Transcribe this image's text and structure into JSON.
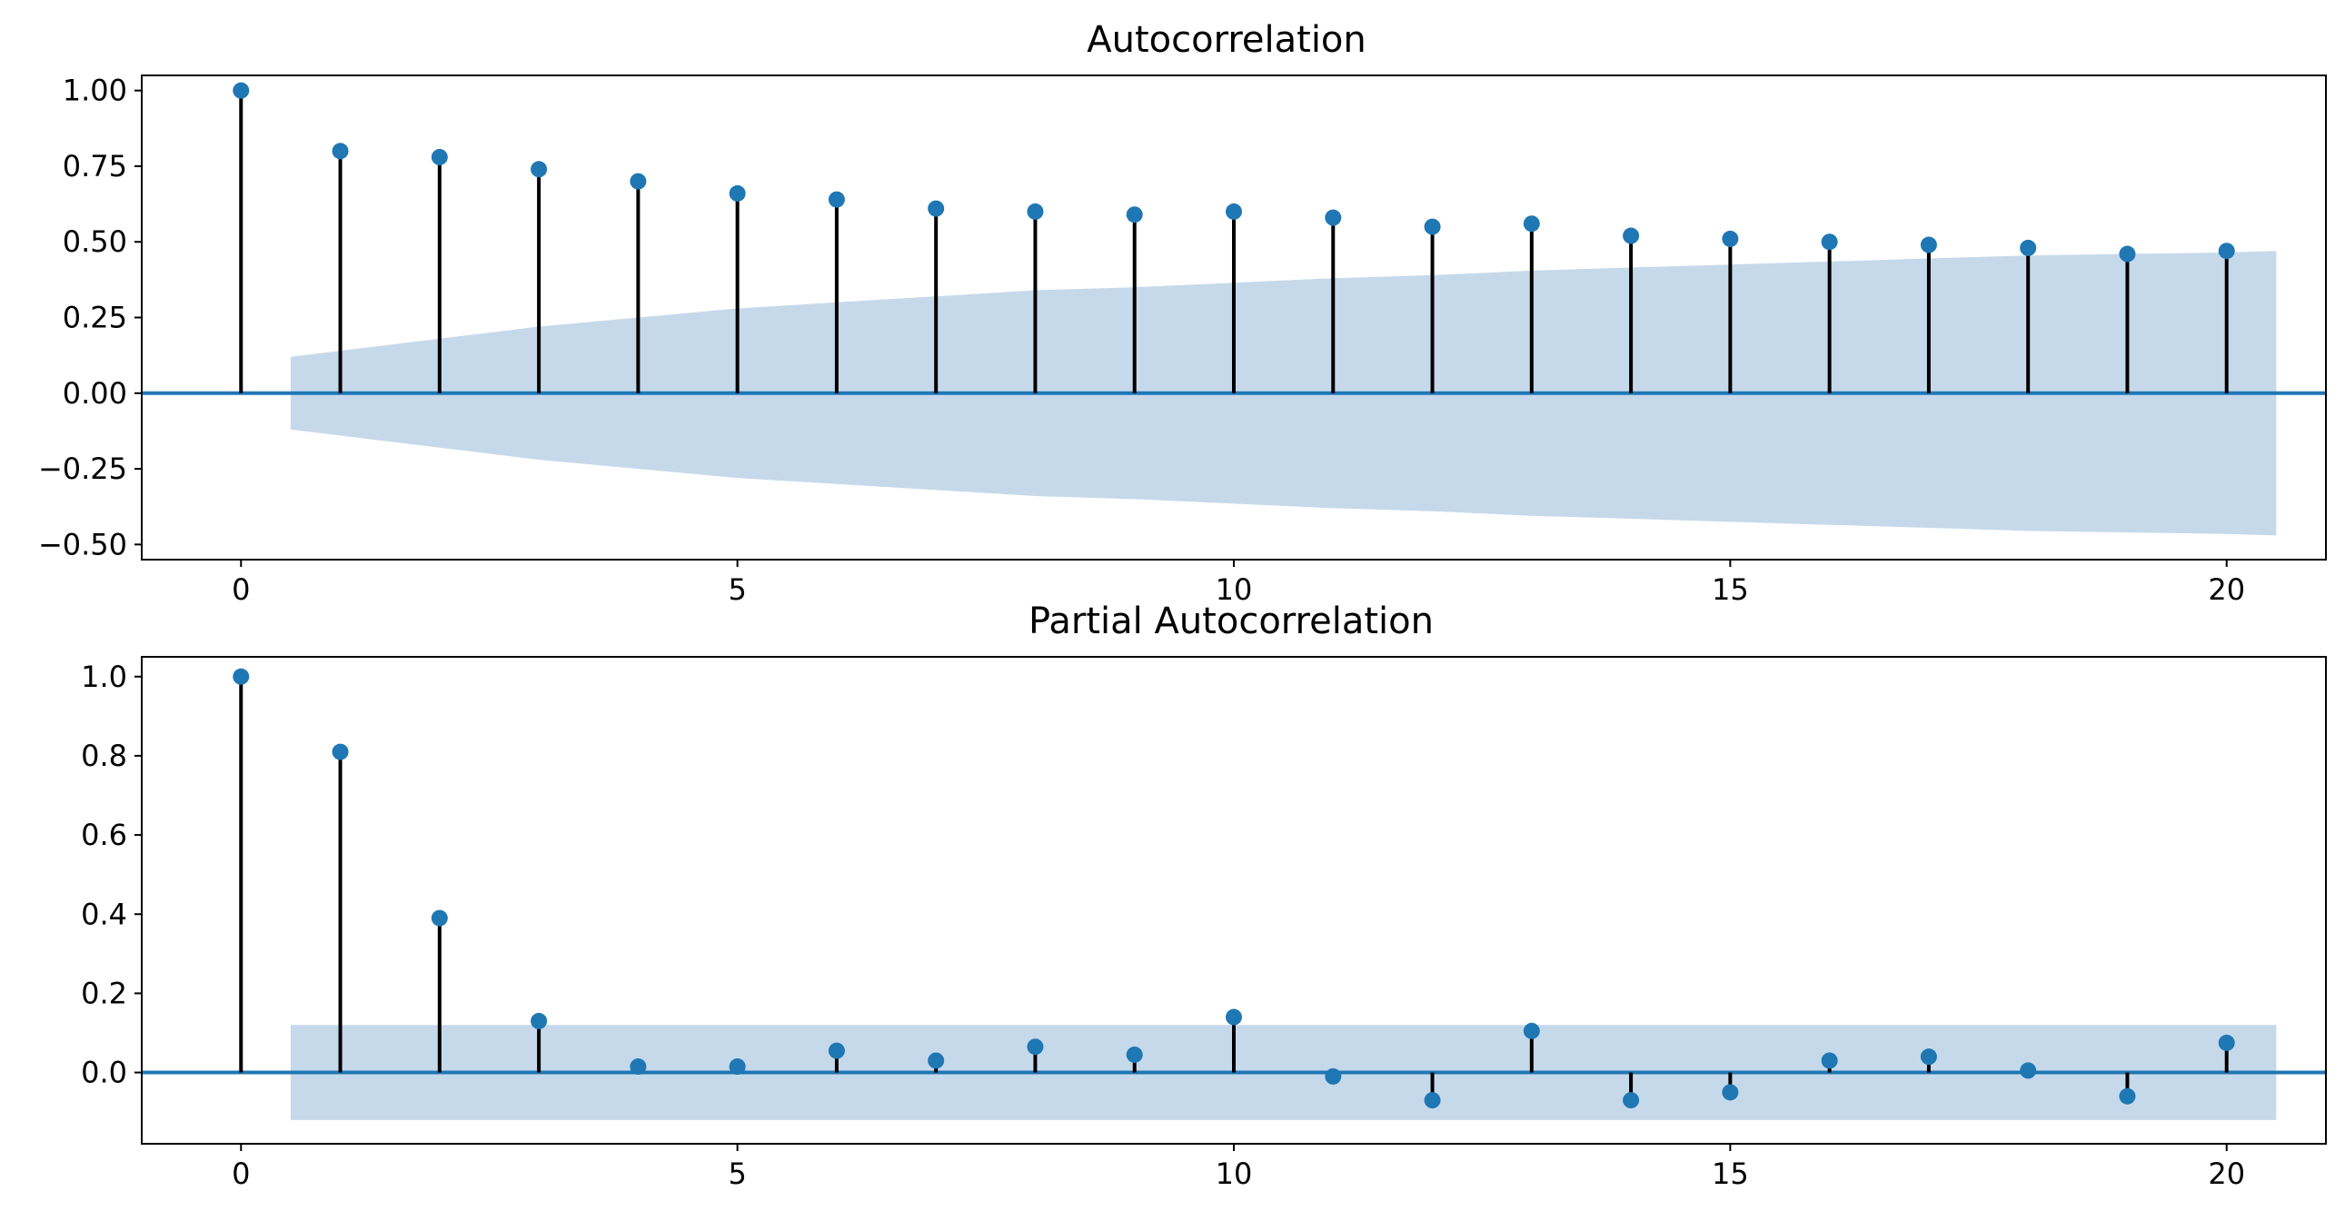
{
  "chart_data": [
    {
      "type": "stem",
      "title": "Autocorrelation",
      "xlabel": "",
      "ylabel": "",
      "xlim": [
        -1,
        21
      ],
      "ylim": [
        -0.55,
        1.05
      ],
      "x_ticks": [
        0,
        5,
        10,
        15,
        20
      ],
      "x_tick_labels": [
        "0",
        "5",
        "10",
        "15",
        "20"
      ],
      "y_ticks": [
        1.0,
        0.75,
        0.5,
        0.25,
        0.0,
        -0.25,
        -0.5
      ],
      "y_tick_labels": [
        "1.00",
        "0.75",
        "0.50",
        "0.25",
        "0.00",
        "−0.25",
        "−0.50"
      ],
      "lags": [
        0,
        1,
        2,
        3,
        4,
        5,
        6,
        7,
        8,
        9,
        10,
        11,
        12,
        13,
        14,
        15,
        16,
        17,
        18,
        19,
        20
      ],
      "values": [
        1.0,
        0.8,
        0.78,
        0.74,
        0.7,
        0.66,
        0.64,
        0.61,
        0.6,
        0.59,
        0.6,
        0.58,
        0.55,
        0.56,
        0.52,
        0.51,
        0.5,
        0.49,
        0.48,
        0.46,
        0.47
      ],
      "confidence_band": {
        "lags": [
          0.5,
          1,
          2,
          3,
          4,
          5,
          6,
          7,
          8,
          9,
          10,
          11,
          12,
          13,
          14,
          15,
          16,
          17,
          18,
          19,
          20,
          20.5
        ],
        "upper": [
          0.12,
          0.14,
          0.18,
          0.22,
          0.25,
          0.28,
          0.3,
          0.32,
          0.34,
          0.35,
          0.365,
          0.38,
          0.39,
          0.405,
          0.415,
          0.425,
          0.435,
          0.445,
          0.455,
          0.46,
          0.465,
          0.47
        ],
        "lower": [
          -0.12,
          -0.14,
          -0.18,
          -0.22,
          -0.25,
          -0.28,
          -0.3,
          -0.32,
          -0.34,
          -0.35,
          -0.365,
          -0.38,
          -0.39,
          -0.405,
          -0.415,
          -0.425,
          -0.435,
          -0.445,
          -0.455,
          -0.46,
          -0.465,
          -0.47
        ]
      },
      "grid": false,
      "colors": {
        "marker": "#1f77b4",
        "stem": "#000000",
        "band": "#c6d9eb",
        "zero_line": "#1f77b4"
      }
    },
    {
      "type": "stem",
      "title": "Partial Autocorrelation",
      "xlabel": "",
      "ylabel": "",
      "xlim": [
        -1,
        21
      ],
      "ylim": [
        -0.18,
        1.05
      ],
      "x_ticks": [
        0,
        5,
        10,
        15,
        20
      ],
      "x_tick_labels": [
        "0",
        "5",
        "10",
        "15",
        "20"
      ],
      "y_ticks": [
        1.0,
        0.8,
        0.6,
        0.4,
        0.2,
        0.0
      ],
      "y_tick_labels": [
        "1.0",
        "0.8",
        "0.6",
        "0.4",
        "0.2",
        "0.0"
      ],
      "lags": [
        0,
        1,
        2,
        3,
        4,
        5,
        6,
        7,
        8,
        9,
        10,
        11,
        12,
        13,
        14,
        15,
        16,
        17,
        18,
        19,
        20
      ],
      "values": [
        1.0,
        0.81,
        0.39,
        0.13,
        0.015,
        0.015,
        0.055,
        0.03,
        0.065,
        0.045,
        0.14,
        -0.01,
        -0.07,
        0.105,
        -0.07,
        -0.05,
        0.03,
        0.04,
        0.005,
        -0.06,
        0.075
      ],
      "confidence_band": {
        "lags": [
          0.5,
          20.5
        ],
        "upper": [
          0.12,
          0.12
        ],
        "lower": [
          -0.12,
          -0.12
        ]
      },
      "grid": false,
      "colors": {
        "marker": "#1f77b4",
        "stem": "#000000",
        "band": "#c6d9eb",
        "zero_line": "#1f77b4"
      }
    }
  ]
}
